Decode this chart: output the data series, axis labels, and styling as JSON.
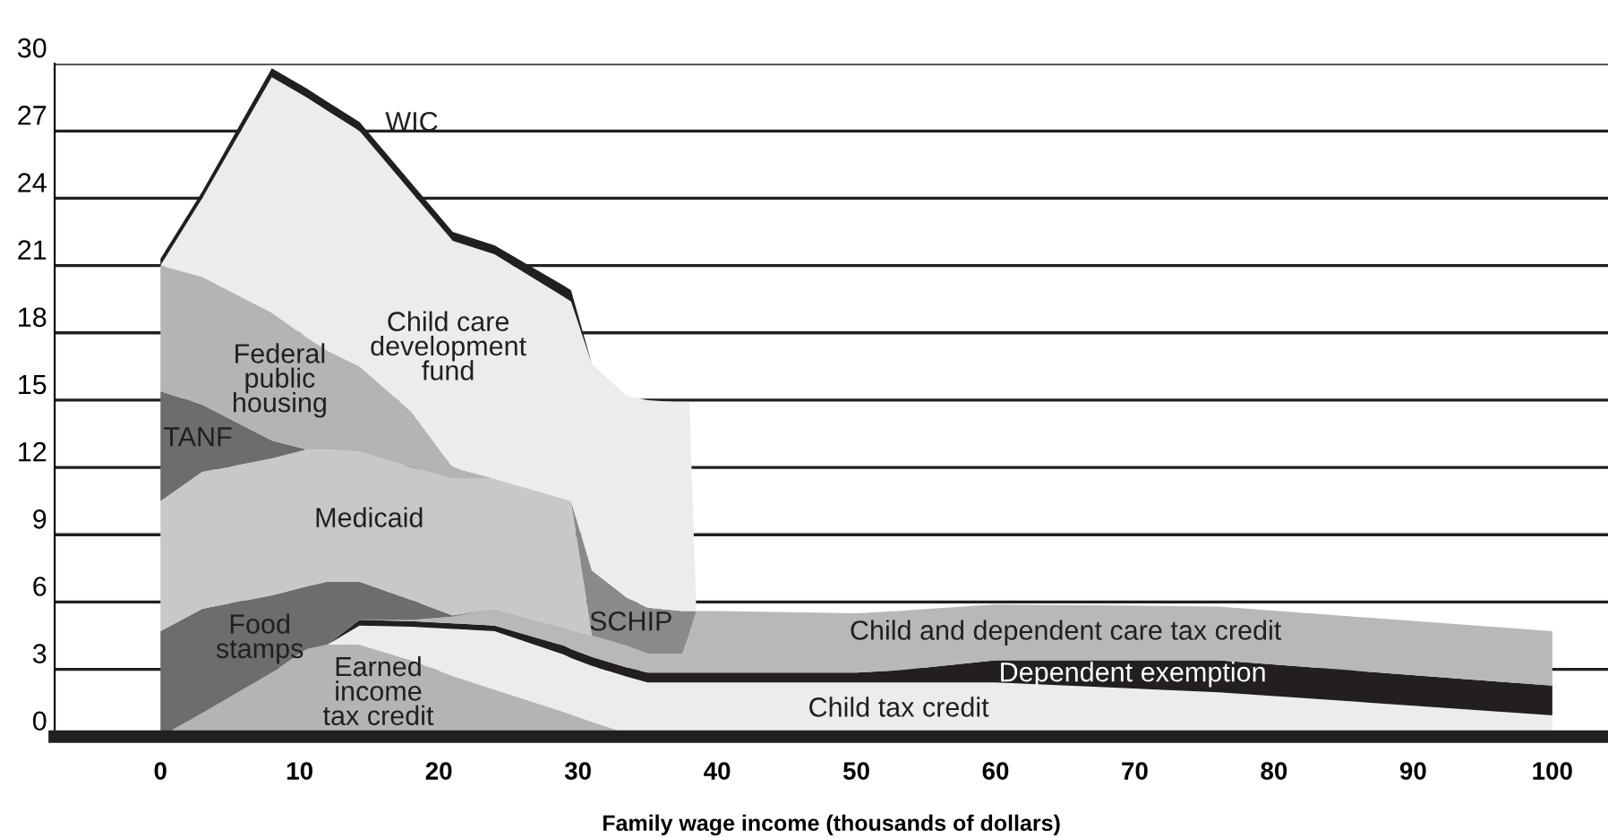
{
  "chart_data": {
    "type": "area",
    "stacked": true,
    "xlabel": "Family wage income (thousands of dollars)",
    "x": [
      0,
      3,
      8,
      10.5,
      12,
      14.3,
      18,
      21,
      24,
      29,
      29.5,
      31,
      33.5,
      35,
      37.5,
      38,
      38.5,
      40,
      50,
      53,
      60,
      76,
      100
    ],
    "xlim": [
      -7.6,
      104
    ],
    "xticks": [
      0,
      10,
      20,
      30,
      40,
      50,
      60,
      70,
      80,
      90,
      100
    ],
    "ylim": [
      0,
      30
    ],
    "yticks": [
      0,
      3,
      6,
      9,
      12,
      15,
      18,
      21,
      24,
      27,
      30
    ],
    "grid": "y",
    "legend": false,
    "series": [
      {
        "name": "Earned\nincome\ntax credit",
        "color": "#b4b4b4",
        "values": [
          0,
          1.05,
          2.85,
          3.9,
          4.1,
          4.1,
          3.4,
          2.7,
          2.1,
          1.1,
          0.99,
          0.66,
          0.15,
          0,
          null,
          null,
          null,
          null,
          null,
          null,
          null,
          null,
          null
        ]
      },
      {
        "name": "Child tax credit",
        "color": "#ececec",
        "values": [
          null,
          null,
          null,
          null,
          0,
          0.85,
          1.5,
          2.1,
          2.6,
          2.55,
          2.51,
          2.49,
          2.52,
          2.41,
          2.41,
          2.41,
          2.41,
          2.41,
          2.41,
          2.41,
          2.41,
          1.98,
          0.95
        ]
      },
      {
        "name": "Dependent exemption",
        "color": "#231f20",
        "values": [
          null,
          null,
          null,
          null,
          0,
          0.25,
          0.25,
          0.25,
          0.25,
          0.4,
          0.4,
          0.4,
          0.41,
          0.44,
          0.44,
          0.44,
          0.44,
          0.44,
          0.44,
          0.54,
          0.99,
          1.42,
          1.32
        ]
      },
      {
        "name": "Child and dependent care tax credit",
        "color": "#b8b8b8",
        "values": [
          null,
          null,
          null,
          null,
          null,
          0,
          0.05,
          0.3,
          0.75,
          0.8,
          0.85,
          0.95,
          0.97,
          0.85,
          0.85,
          1.75,
          2.75,
          2.75,
          2.65,
          2.65,
          2.5,
          2.4,
          2.43
        ]
      },
      {
        "name": "Food\nstamps",
        "color": "#6d6d6f",
        "values": [
          4.7,
          4.65,
          3.45,
          2.8,
          2.8,
          1.7,
          0.9,
          0.05,
          0,
          null,
          null,
          null,
          null,
          null,
          null,
          null,
          null,
          null,
          null,
          null,
          null,
          null,
          null
        ]
      },
      {
        "name": "Medicaid",
        "color": "#c8c8c8",
        "values": [
          5.8,
          6.1,
          6.1,
          6.1,
          5.9,
          5.8,
          5.9,
          6.1,
          5.8,
          5.75,
          5.75,
          0,
          null,
          null,
          null,
          null,
          null,
          null,
          null,
          null,
          null,
          null,
          null
        ]
      },
      {
        "name": "SCHIP",
        "color": "#8a8a8a",
        "values": [
          null,
          null,
          null,
          null,
          null,
          null,
          null,
          null,
          null,
          null,
          0,
          2.9,
          2.15,
          2.05,
          1.9,
          1.0,
          0,
          null,
          null,
          null,
          null,
          null,
          null
        ]
      },
      {
        "name": "TANF",
        "color": "#6d6d6f",
        "values": [
          4.9,
          3.0,
          0.8,
          0,
          null,
          null,
          null,
          null,
          null,
          null,
          null,
          null,
          null,
          null,
          null,
          null,
          null,
          null,
          null,
          null,
          null,
          null,
          null
        ]
      },
      {
        "name": "Federal\npublic\nhousing",
        "color": "#b4b4b4",
        "values": [
          5.6,
          5.7,
          5.7,
          5.0,
          4.4,
          3.8,
          2.5,
          0.5,
          0,
          null,
          null,
          null,
          null,
          null,
          null,
          null,
          null,
          null,
          null,
          null,
          null,
          null,
          null
        ]
      },
      {
        "name": "Child care\ndevelopment\nfund",
        "color": "#ececec",
        "values": [
          0,
          3.5,
          10.5,
          10.7,
          10.7,
          10.5,
          9.8,
          10.1,
          10.0,
          9.0,
          8.9,
          9.2,
          9.0,
          9.25,
          9.3,
          9.3,
          0,
          null,
          null,
          null,
          null,
          null,
          null
        ]
      },
      {
        "name": "WIC",
        "color": "#231f20",
        "values": [
          0.3,
          0.3,
          0.4,
          0.4,
          0.4,
          0.4,
          0.4,
          0.4,
          0.4,
          0.5,
          0.5,
          0,
          null,
          null,
          null,
          null,
          null,
          null,
          null,
          null,
          null,
          null,
          null
        ]
      }
    ]
  }
}
